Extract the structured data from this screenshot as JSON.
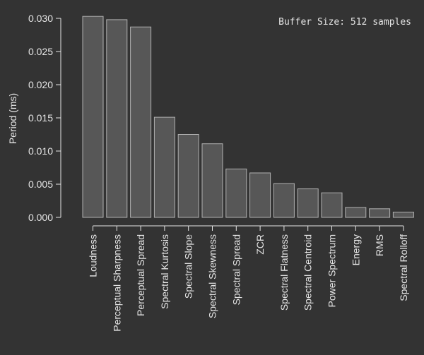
{
  "chart_data": {
    "type": "bar",
    "categories": [
      "Loudness",
      "Perceptual Sharpness",
      "Perceptual Spread",
      "Spectral Kurtosis",
      "Spectral Slope",
      "Spectral Skewness",
      "Spectral Spread",
      "ZCR",
      "Spectral Flatness",
      "Spectral Centroid",
      "Power Spectrum",
      "Energy",
      "RMS",
      "Spectral Rolloff"
    ],
    "values": [
      0.0303,
      0.0298,
      0.0287,
      0.0151,
      0.0125,
      0.0111,
      0.0073,
      0.0067,
      0.0051,
      0.0043,
      0.0037,
      0.0015,
      0.0013,
      0.0008
    ],
    "ylabel": "Period (ms)",
    "ylim": [
      0,
      0.03
    ],
    "yticks": [
      "0.000",
      "0.005",
      "0.010",
      "0.015",
      "0.020",
      "0.025",
      "0.030"
    ],
    "annotation": "Buffer Size: 512 samples",
    "bar_color": "#575757",
    "bar_edge_color": "#b0b0b0",
    "text_color": "#e6e6e6",
    "background": "#333333",
    "grid": false
  }
}
